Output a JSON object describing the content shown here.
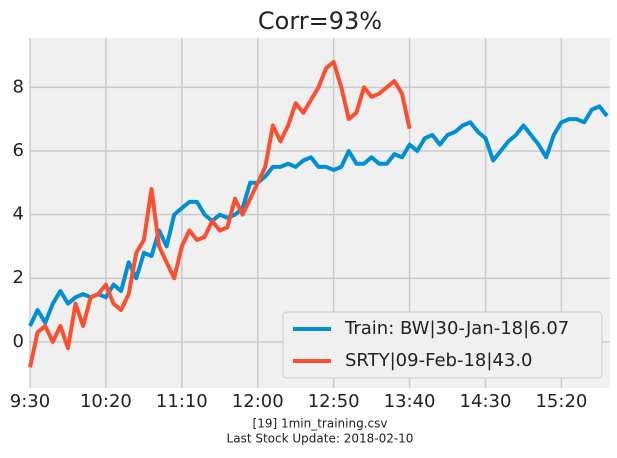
{
  "chart_data": {
    "type": "line",
    "title": "Corr=93%",
    "footnotes": [
      "[19] 1min_training.csv",
      "Last Stock Update: 2018-02-10"
    ],
    "x": [
      "9:30",
      "9:35",
      "9:40",
      "9:45",
      "9:50",
      "9:55",
      "10:00",
      "10:05",
      "10:10",
      "10:15",
      "10:20",
      "10:25",
      "10:30",
      "10:35",
      "10:40",
      "10:45",
      "10:50",
      "10:55",
      "11:00",
      "11:05",
      "11:10",
      "11:15",
      "11:20",
      "11:25",
      "11:30",
      "11:35",
      "11:40",
      "11:45",
      "11:50",
      "11:55",
      "12:00",
      "12:05",
      "12:10",
      "12:15",
      "12:20",
      "12:25",
      "12:30",
      "12:35",
      "12:40",
      "12:45",
      "12:50",
      "12:55",
      "13:00",
      "13:05",
      "13:10",
      "13:15",
      "13:20",
      "13:25",
      "13:30",
      "13:35",
      "13:40",
      "13:45",
      "13:50",
      "13:55",
      "14:00",
      "14:05",
      "14:10",
      "14:15",
      "14:20",
      "14:25",
      "14:30",
      "14:35",
      "14:40",
      "14:45",
      "14:50",
      "14:55",
      "15:00",
      "15:05",
      "15:10",
      "15:15",
      "15:20",
      "15:25",
      "15:30",
      "15:35",
      "15:40",
      "15:45",
      "15:50"
    ],
    "xticks": [
      "9:30",
      "10:20",
      "11:10",
      "12:00",
      "12:50",
      "13:40",
      "14:30",
      "15:20"
    ],
    "series": [
      {
        "name": "Train: BW|30-Jan-18|6.07",
        "color": "#008fd5",
        "values": [
          0.5,
          1.0,
          0.6,
          1.2,
          1.6,
          1.2,
          1.4,
          1.5,
          1.4,
          1.5,
          1.4,
          1.8,
          1.6,
          2.5,
          2.0,
          2.8,
          2.7,
          3.5,
          3.0,
          4.0,
          4.2,
          4.4,
          4.4,
          4.0,
          3.8,
          4.0,
          3.9,
          4.0,
          4.2,
          5.0,
          5.0,
          5.2,
          5.5,
          5.5,
          5.6,
          5.5,
          5.7,
          5.8,
          5.5,
          5.5,
          5.4,
          5.5,
          6.0,
          5.6,
          5.6,
          5.8,
          5.6,
          5.6,
          5.9,
          5.8,
          6.2,
          6.0,
          6.4,
          6.5,
          6.2,
          6.5,
          6.6,
          6.8,
          6.9,
          6.6,
          6.4,
          5.7,
          6.0,
          6.3,
          6.5,
          6.8,
          6.5,
          6.2,
          5.8,
          6.5,
          6.9,
          7.0,
          7.0,
          6.9,
          7.3,
          7.4,
          7.1
        ]
      },
      {
        "name": "SRTY|09-Feb-18|43.0",
        "color": "#fc4f30",
        "values": [
          -0.8,
          0.3,
          0.5,
          0.0,
          0.5,
          -0.2,
          1.2,
          0.5,
          1.4,
          1.5,
          1.8,
          1.2,
          1.0,
          1.5,
          2.8,
          3.2,
          4.8,
          3.0,
          2.5,
          2.0,
          3.0,
          3.5,
          3.2,
          3.3,
          3.8,
          3.5,
          3.6,
          4.5,
          4.0,
          4.5,
          5.0,
          5.5,
          6.8,
          6.3,
          6.8,
          7.5,
          7.2,
          7.6,
          8.0,
          8.6,
          8.8,
          8.0,
          7.0,
          7.2,
          8.0,
          7.7,
          7.8,
          8.0,
          8.2,
          7.8,
          6.7,
          null,
          null,
          null,
          null,
          null,
          null,
          null,
          null,
          null,
          null,
          null,
          null,
          null,
          null,
          null,
          null,
          null,
          null,
          null,
          null,
          null,
          null,
          null,
          null,
          null,
          null
        ]
      }
    ],
    "ylim": [
      -1.45,
      9.55
    ],
    "yticks": [
      0,
      2,
      4,
      6,
      8
    ],
    "grid": true,
    "legend": "lower right"
  }
}
